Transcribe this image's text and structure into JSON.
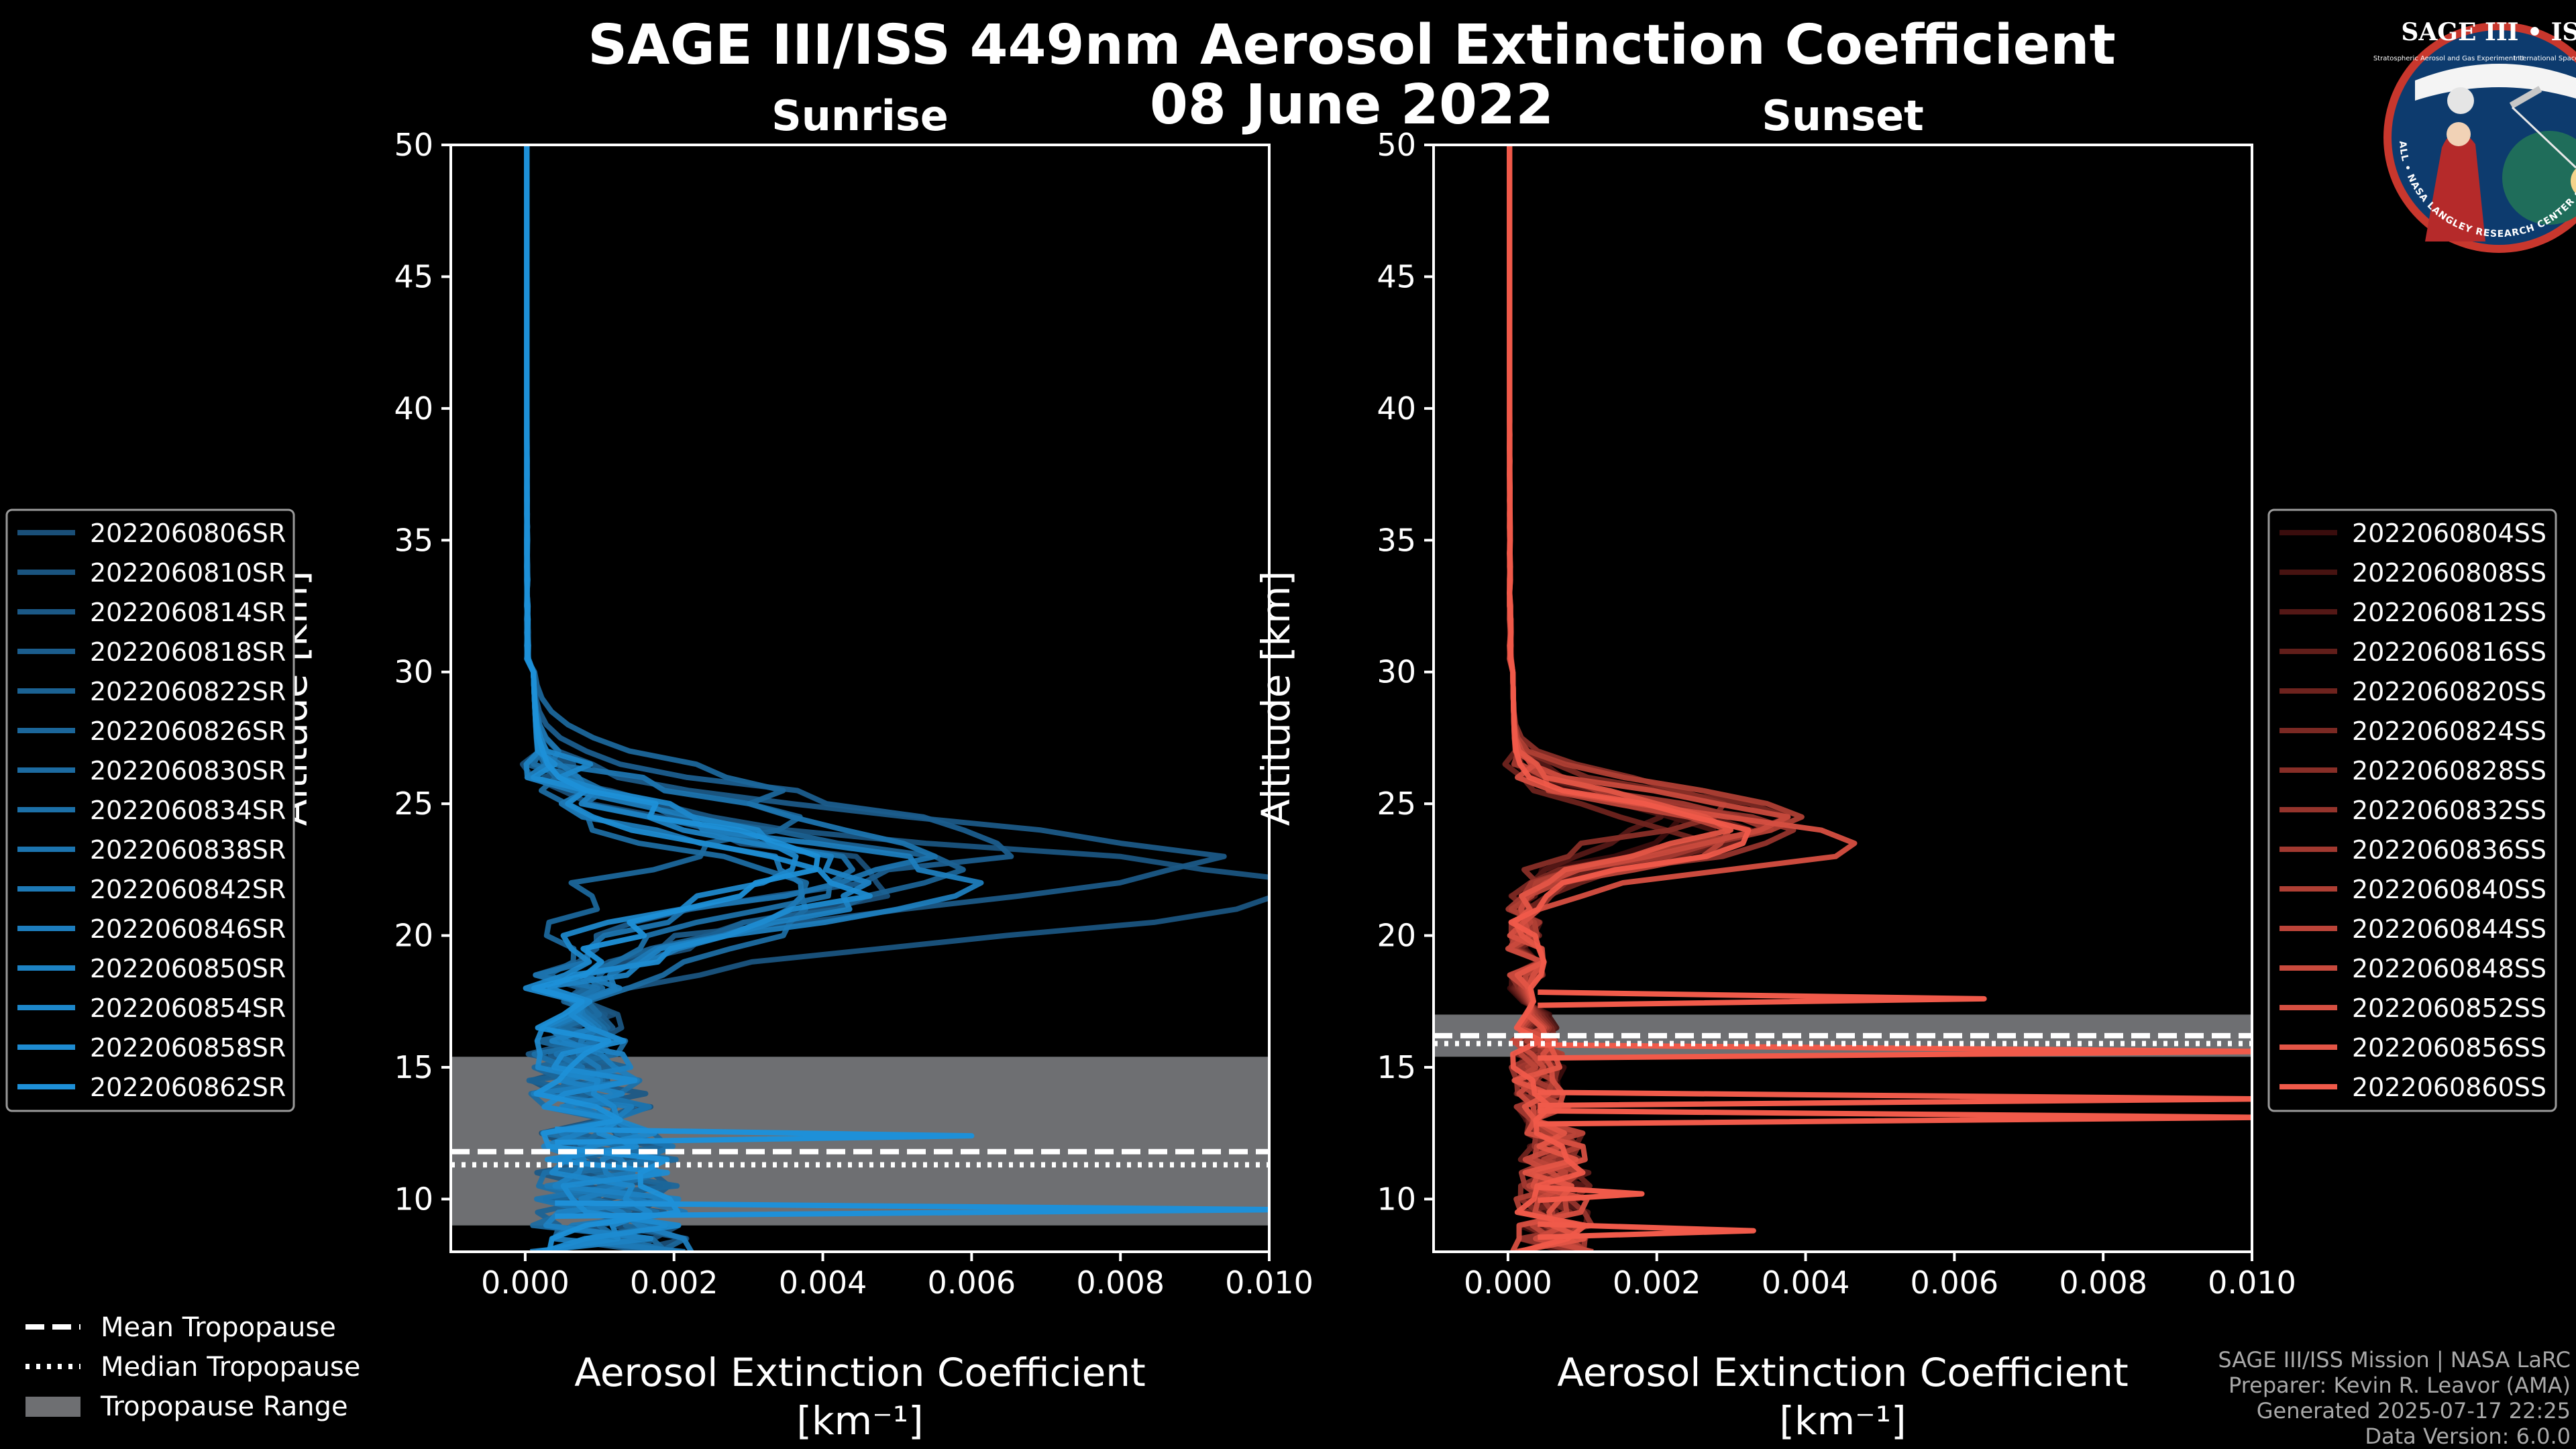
{
  "title_line1": "SAGE III/ISS 449nm Aerosol Extinction Coefficient",
  "title_line2": "08 June 2022",
  "logo": {
    "top_text": "SAGE III • ISS",
    "ring_text": "BALL • NASA LANGLEY RESEARCH CENTER • TAS • ESA",
    "small_left": "Stratospheric Aerosol and Gas Experiment III",
    "small_right": "International Space Station"
  },
  "colors": {
    "background": "#000000",
    "sunrise_base": "#1e90d8",
    "sunset_base": "#f05a4a",
    "tropopause_range": "#6e6f72",
    "logo_ring": "#c8372d",
    "logo_inner": "#0d3b6e"
  },
  "footer": {
    "line1": "SAGE III/ISS Mission | NASA LaRC",
    "line2": "Preparer: Kevin R. Leavor (AMA)",
    "line3": "Generated 2025-07-17 22:25",
    "line4": "Data Version: 6.0.0"
  },
  "tropopause_legend": {
    "mean": "Mean Tropopause",
    "median": "Median Tropopause",
    "range": "Tropopause Range"
  },
  "chart_data": [
    {
      "type": "line",
      "panel": "sunrise",
      "title": "Sunrise",
      "xlabel": "Aerosol Extinction Coefficient",
      "xunit": "[km⁻¹]",
      "ylabel": "Altitude [km]",
      "xlim": [
        -0.001,
        0.01
      ],
      "ylim": [
        8,
        50
      ],
      "xticks": [
        0.0,
        0.002,
        0.004,
        0.006,
        0.008,
        0.01
      ],
      "xtick_labels": [
        "0.000",
        "0.002",
        "0.004",
        "0.006",
        "0.008",
        "0.010"
      ],
      "yticks": [
        10,
        15,
        20,
        25,
        30,
        35,
        40,
        45,
        50
      ],
      "grid": false,
      "legend_position": "left",
      "tropopause": {
        "mean": 11.8,
        "median": 11.3,
        "range": [
          9.0,
          15.4
        ]
      },
      "series": [
        {
          "name": "2022060806SR",
          "peak_alt": 22.0,
          "peak_val": 0.0046
        },
        {
          "name": "2022060810SR",
          "peak_alt": 21.7,
          "peak_val": 0.0102
        },
        {
          "name": "2022060814SR",
          "peak_alt": 22.8,
          "peak_val": 0.0088
        },
        {
          "name": "2022060818SR",
          "peak_alt": 23.6,
          "peak_val": 0.0063
        },
        {
          "name": "2022060822SR",
          "peak_alt": 22.4,
          "peak_val": 0.0052
        },
        {
          "name": "2022060826SR",
          "peak_alt": 24.8,
          "peak_val": 0.0032
        },
        {
          "name": "2022060830SR",
          "peak_alt": 21.2,
          "peak_val": 0.0038
        },
        {
          "name": "2022060834SR",
          "peak_alt": 22.2,
          "peak_val": 0.0041
        },
        {
          "name": "2022060838SR",
          "peak_alt": 23.2,
          "peak_val": 0.0049
        },
        {
          "name": "2022060842SR",
          "peak_alt": 21.8,
          "peak_val": 0.0036
        },
        {
          "name": "2022060846SR",
          "peak_alt": 22.0,
          "peak_val": 0.0055
        },
        {
          "name": "2022060850SR",
          "peak_alt": 21.9,
          "peak_val": 0.0044
        },
        {
          "name": "2022060854SR",
          "peak_alt": 23.0,
          "peak_val": 0.003
        },
        {
          "name": "2022060858SR",
          "peak_alt": 21.6,
          "peak_val": 0.0039
        },
        {
          "name": "2022060862SR",
          "peak_alt": 22.6,
          "peak_val": 0.0034
        }
      ],
      "spikes": [
        {
          "alt": 12.4,
          "val": 0.006
        },
        {
          "alt": 9.6,
          "val": 0.0102
        }
      ]
    },
    {
      "type": "line",
      "panel": "sunset",
      "title": "Sunset",
      "xlabel": "Aerosol Extinction Coefficient",
      "xunit": "[km⁻¹]",
      "ylabel": "Altitude [km]",
      "xlim": [
        -0.001,
        0.01
      ],
      "ylim": [
        8,
        50
      ],
      "xticks": [
        0.0,
        0.002,
        0.004,
        0.006,
        0.008,
        0.01
      ],
      "xtick_labels": [
        "0.000",
        "0.002",
        "0.004",
        "0.006",
        "0.008",
        "0.010"
      ],
      "yticks": [
        10,
        15,
        20,
        25,
        30,
        35,
        40,
        45,
        50
      ],
      "grid": false,
      "legend_position": "right",
      "tropopause": {
        "mean": 16.2,
        "median": 15.9,
        "range": [
          15.4,
          17.0
        ]
      },
      "series": [
        {
          "name": "2022060804SS",
          "peak_alt": 24.2,
          "peak_val": 0.0022
        },
        {
          "name": "2022060808SS",
          "peak_alt": 23.8,
          "peak_val": 0.0026
        },
        {
          "name": "2022060812SS",
          "peak_alt": 24.6,
          "peak_val": 0.002
        },
        {
          "name": "2022060816SS",
          "peak_alt": 24.0,
          "peak_val": 0.0031
        },
        {
          "name": "2022060820SS",
          "peak_alt": 23.6,
          "peak_val": 0.0024
        },
        {
          "name": "2022060824SS",
          "peak_alt": 24.4,
          "peak_val": 0.0035
        },
        {
          "name": "2022060828SS",
          "peak_alt": 24.9,
          "peak_val": 0.0028
        },
        {
          "name": "2022060832SS",
          "peak_alt": 23.9,
          "peak_val": 0.0038
        },
        {
          "name": "2022060836SS",
          "peak_alt": 24.1,
          "peak_val": 0.0033
        },
        {
          "name": "2022060840SS",
          "peak_alt": 24.5,
          "peak_val": 0.004
        },
        {
          "name": "2022060844SS",
          "peak_alt": 23.7,
          "peak_val": 0.0029
        },
        {
          "name": "2022060848SS",
          "peak_alt": 24.3,
          "peak_val": 0.0036
        },
        {
          "name": "2022060852SS",
          "peak_alt": 23.5,
          "peak_val": 0.0046
        },
        {
          "name": "2022060856SS",
          "peak_alt": 24.2,
          "peak_val": 0.0027
        },
        {
          "name": "2022060860SS",
          "peak_alt": 23.8,
          "peak_val": 0.0032
        }
      ],
      "spikes": [
        {
          "alt": 17.6,
          "val": 0.0064
        },
        {
          "alt": 15.6,
          "val": 0.0102
        },
        {
          "alt": 13.8,
          "val": 0.0102
        },
        {
          "alt": 13.1,
          "val": 0.0102
        },
        {
          "alt": 10.2,
          "val": 0.0018
        },
        {
          "alt": 8.8,
          "val": 0.0033
        }
      ]
    }
  ]
}
